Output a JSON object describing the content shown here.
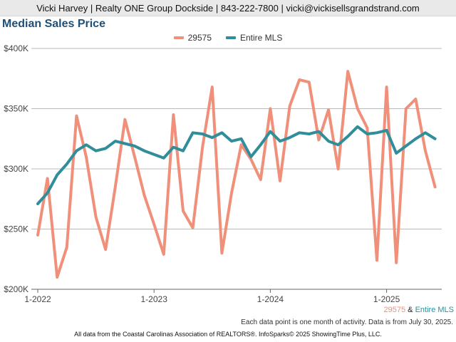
{
  "header": {
    "text": "Vicki Harvey | Realty ONE Group Dockside | 843-222-7800 | vicki@vickisellsgrandstrand.com"
  },
  "footer": {
    "note": "Each data point is one month of activity. Data is from July 30, 2025.",
    "attribution": "All data from the Coastal Carolinas Association of REALTORS®. InfoSparks© 2025 ShowingTime Plus, LLC.",
    "series_caption_a": "29575",
    "series_caption_join": " & ",
    "series_caption_b": "Entire MLS"
  },
  "colors": {
    "series_29575": "#f0907a",
    "series_mls": "#2f8e99",
    "title": "#1e4f77",
    "grid": "#bbbbbb"
  },
  "chart_data": {
    "type": "line",
    "title": "Median Sales Price",
    "xlabel": "",
    "ylabel": "",
    "x": [
      "2022-01",
      "2022-02",
      "2022-03",
      "2022-04",
      "2022-05",
      "2022-06",
      "2022-07",
      "2022-08",
      "2022-09",
      "2022-10",
      "2022-11",
      "2022-12",
      "2023-01",
      "2023-02",
      "2023-03",
      "2023-04",
      "2023-05",
      "2023-06",
      "2023-07",
      "2023-08",
      "2023-09",
      "2023-10",
      "2023-11",
      "2023-12",
      "2024-01",
      "2024-02",
      "2024-03",
      "2024-04",
      "2024-05",
      "2024-06",
      "2024-07",
      "2024-08",
      "2024-09",
      "2024-10",
      "2024-11",
      "2024-12",
      "2025-01",
      "2025-02",
      "2025-03",
      "2025-04",
      "2025-05",
      "2025-06"
    ],
    "x_ticks": [
      {
        "label": "1-2022",
        "at": "2022-01"
      },
      {
        "label": "1-2023",
        "at": "2023-01"
      },
      {
        "label": "1-2024",
        "at": "2024-01"
      },
      {
        "label": "1-2025",
        "at": "2025-01"
      }
    ],
    "y_ticks": [
      {
        "label": "$200K",
        "value": 200000
      },
      {
        "label": "$250K",
        "value": 250000
      },
      {
        "label": "$300K",
        "value": 300000
      },
      {
        "label": "$350K",
        "value": 350000
      },
      {
        "label": "$400K",
        "value": 400000
      }
    ],
    "ylim": [
      200000,
      400000
    ],
    "grid": true,
    "legend_position": "top-center",
    "series": [
      {
        "name": "29575",
        "color": "#f0907a",
        "values": [
          245000,
          292000,
          210000,
          235000,
          344000,
          310000,
          260000,
          233000,
          285000,
          341000,
          310000,
          278000,
          254000,
          229000,
          345000,
          265000,
          251000,
          318000,
          368000,
          230000,
          280000,
          320000,
          308000,
          291000,
          350000,
          290000,
          352000,
          374000,
          372000,
          324000,
          349000,
          300000,
          381000,
          350000,
          334000,
          224000,
          368000,
          222000,
          350000,
          358000,
          315000,
          285000
        ]
      },
      {
        "name": "Entire MLS",
        "color": "#2f8e99",
        "values": [
          271000,
          280000,
          295000,
          304000,
          315000,
          320000,
          315000,
          317000,
          323000,
          321000,
          319000,
          315000,
          312000,
          309000,
          318000,
          315000,
          330000,
          329000,
          326000,
          330000,
          323000,
          325000,
          310000,
          320000,
          331000,
          323000,
          326000,
          330000,
          329000,
          331000,
          323000,
          320000,
          327000,
          335000,
          329000,
          330000,
          332000,
          313000,
          319000,
          325000,
          330000,
          325000
        ]
      }
    ]
  }
}
